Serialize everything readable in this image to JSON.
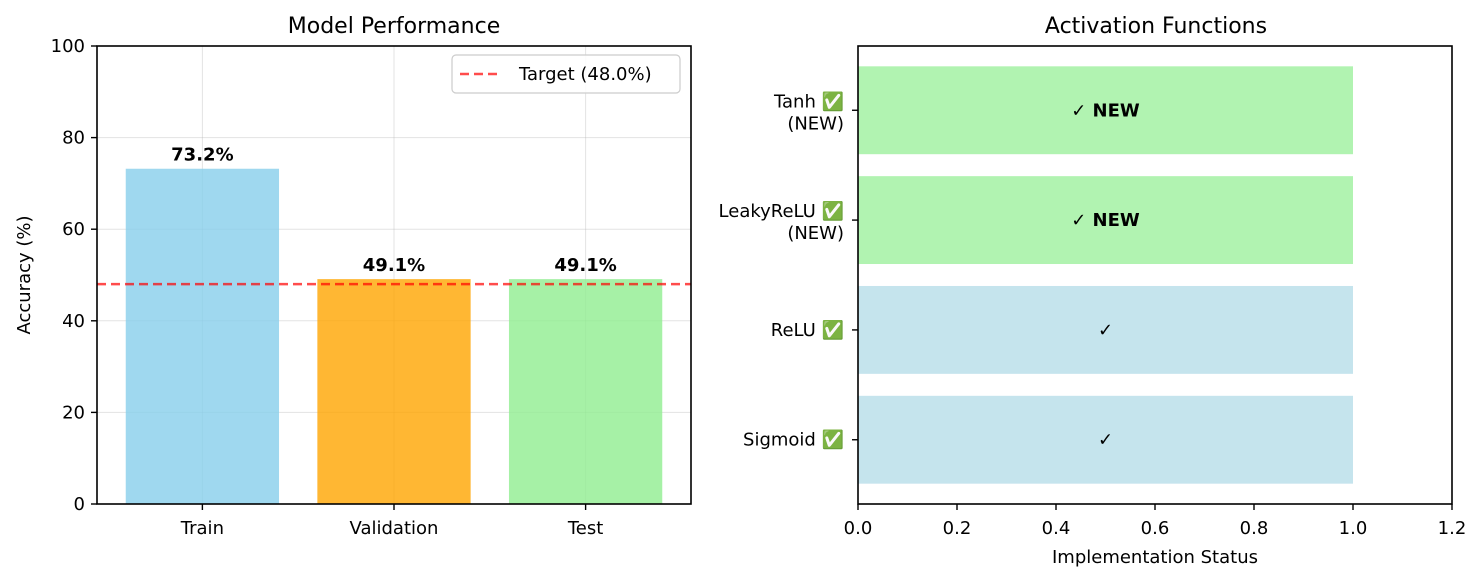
{
  "colors": {
    "train": "#87ceeb",
    "validation": "#ffa500",
    "test": "#90ee90",
    "target_line": "#ff0000",
    "implemented": "#add8e6",
    "new": "#90ee90"
  },
  "chart_data": [
    {
      "type": "bar",
      "title": "Model Performance",
      "xlabel": "",
      "ylabel": "Accuracy (%)",
      "categories": [
        "Train",
        "Validation",
        "Test"
      ],
      "values": [
        73.2,
        49.1,
        49.1
      ],
      "value_labels": [
        "73.2%",
        "49.1%",
        "49.1%"
      ],
      "bar_colors": [
        "#87ceeb",
        "#ffa500",
        "#90ee90"
      ],
      "bar_alpha": 0.8,
      "ylim": [
        0,
        100
      ],
      "yticks": [
        0,
        20,
        40,
        60,
        80,
        100
      ],
      "grid": true,
      "reference_line": {
        "value": 48.0,
        "label": "Target (48.0%)",
        "style": "dashed",
        "color": "#ff0000"
      },
      "legend": {
        "placement": "top-right",
        "entries": [
          "Target (48.0%)"
        ]
      }
    },
    {
      "type": "bar",
      "orientation": "horizontal",
      "title": "Activation Functions",
      "xlabel": "Implementation Status",
      "ylabel": "",
      "categories": [
        {
          "name": "Sigmoid",
          "mark": "✅",
          "suffix": ""
        },
        {
          "name": "ReLU",
          "mark": "✅",
          "suffix": ""
        },
        {
          "name": "LeakyReLU",
          "mark": "✅",
          "suffix": "(NEW)"
        },
        {
          "name": "Tanh",
          "mark": "✅",
          "suffix": "(NEW)"
        }
      ],
      "values": [
        1.0,
        1.0,
        1.0,
        1.0
      ],
      "bar_text": [
        "✓",
        "✓",
        "✓ NEW",
        "✓ NEW"
      ],
      "bar_text_bold": [
        false,
        false,
        true,
        true
      ],
      "bar_colors": [
        "#add8e6",
        "#add8e6",
        "#90ee90",
        "#90ee90"
      ],
      "bar_alpha": 0.7,
      "xlim": [
        0,
        1.2
      ],
      "xticks": [
        "0.0",
        "0.2",
        "0.4",
        "0.6",
        "0.8",
        "1.0",
        "1.2"
      ],
      "grid": false
    }
  ]
}
